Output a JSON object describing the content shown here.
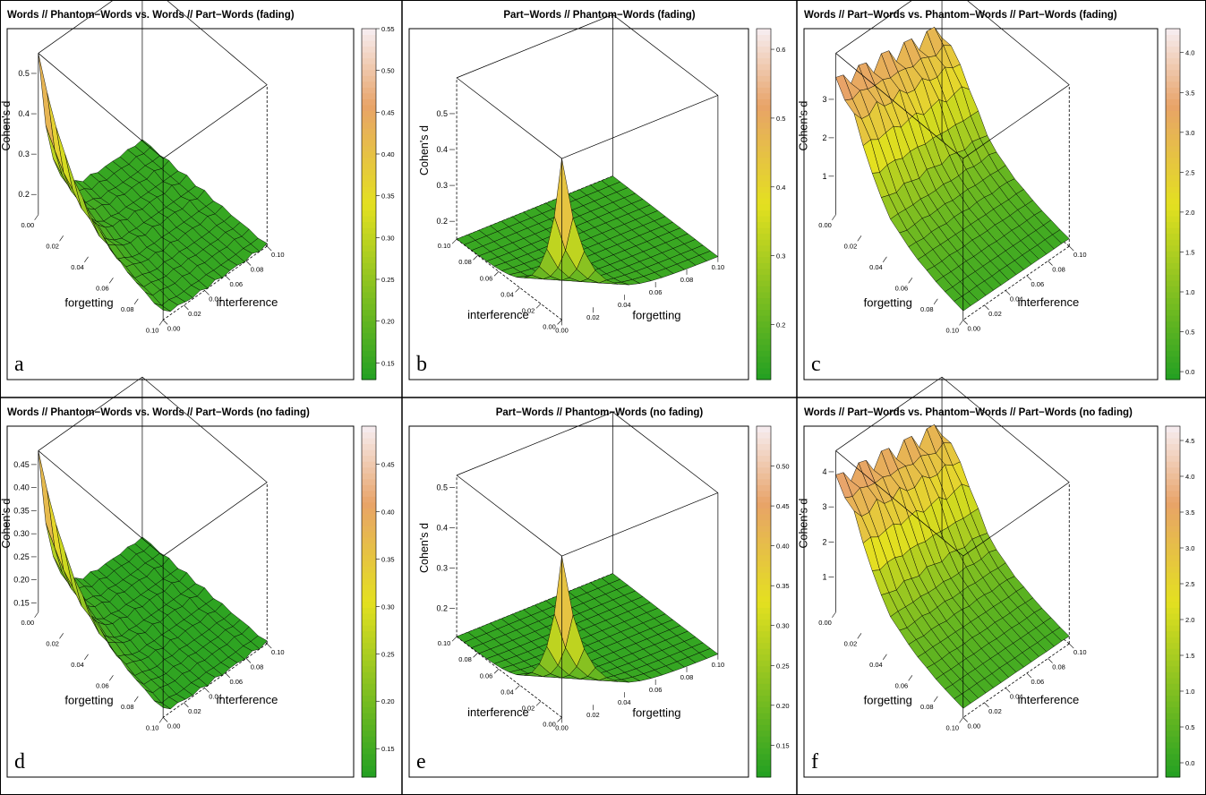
{
  "colors": {
    "low": "#22a022",
    "mid": "#e4e020",
    "high": "#f7eef2",
    "frame": "#000000",
    "mesh_line": "#000000"
  },
  "panels": [
    {
      "letter": "a",
      "title": "Words // Phantom−Words vs. Words // Part−Words (fading)",
      "view": "standard",
      "z_label": "Cohen's d",
      "z_ticks": [
        "0.2",
        "0.3",
        "0.4",
        "0.5"
      ],
      "x_label": "forgetting",
      "y_label": "interference",
      "x_ticks": [
        "0.00",
        "0.02",
        "0.04",
        "0.06",
        "0.08",
        "0.10"
      ],
      "y_ticks": [
        "0.00",
        "0.02",
        "0.04",
        "0.06",
        "0.08",
        "0.10"
      ],
      "colorbar_ticks": [
        "0.15",
        "0.20",
        "0.25",
        "0.30",
        "0.35",
        "0.40",
        "0.45",
        "0.50",
        "0.55"
      ],
      "surface": "edge_decay"
    },
    {
      "letter": "b",
      "title": "Part−Words // Phantom−Words (fading)",
      "view": "rotated",
      "z_label": "Cohen's d",
      "z_ticks": [
        "0.2",
        "0.3",
        "0.4",
        "0.5"
      ],
      "x_label": "forgetting",
      "y_label": "interference",
      "x_ticks": [
        "0.00",
        "0.02",
        "0.04",
        "0.06",
        "0.08",
        "0.10"
      ],
      "y_ticks": [
        "0.00",
        "0.02",
        "0.04",
        "0.06",
        "0.08",
        "0.10"
      ],
      "colorbar_ticks": [
        "0.2",
        "0.3",
        "0.4",
        "0.5",
        "0.6"
      ],
      "surface": "corner_peak"
    },
    {
      "letter": "c",
      "title": "Words // Part−Words vs. Phantom−Words // Part−Words (fading)",
      "view": "standard",
      "z_label": "Cohen's d",
      "z_ticks": [
        "1",
        "2",
        "3"
      ],
      "x_label": "forgetting",
      "y_label": "interference",
      "x_ticks": [
        "0.00",
        "0.02",
        "0.04",
        "0.06",
        "0.08",
        "0.10"
      ],
      "y_ticks": [
        "0.00",
        "0.02",
        "0.04",
        "0.06",
        "0.08",
        "0.10"
      ],
      "colorbar_ticks": [
        "0.0",
        "0.5",
        "1.0",
        "1.5",
        "2.0",
        "2.5",
        "3.0",
        "3.5",
        "4.0"
      ],
      "surface": "ridge_decay"
    },
    {
      "letter": "d",
      "title": "Words // Phantom−Words vs. Words // Part−Words (no fading)",
      "view": "standard",
      "z_label": "Cohen's d",
      "z_ticks": [
        "0.15",
        "0.20",
        "0.25",
        "0.30",
        "0.35",
        "0.40",
        "0.45"
      ],
      "x_label": "forgetting",
      "y_label": "interference",
      "x_ticks": [
        "0.00",
        "0.02",
        "0.04",
        "0.06",
        "0.08",
        "0.10"
      ],
      "y_ticks": [
        "0.00",
        "0.02",
        "0.04",
        "0.06",
        "0.08",
        "0.10"
      ],
      "colorbar_ticks": [
        "0.15",
        "0.20",
        "0.25",
        "0.30",
        "0.35",
        "0.40",
        "0.45"
      ],
      "surface": "edge_decay"
    },
    {
      "letter": "e",
      "title": "Part−Words // Phantom−Words (no fading)",
      "view": "rotated",
      "z_label": "Cohen's d",
      "z_ticks": [
        "0.2",
        "0.3",
        "0.4",
        "0.5"
      ],
      "x_label": "forgetting",
      "y_label": "interference",
      "x_ticks": [
        "0.00",
        "0.02",
        "0.04",
        "0.06",
        "0.08",
        "0.10"
      ],
      "y_ticks": [
        "0.00",
        "0.02",
        "0.04",
        "0.06",
        "0.08",
        "0.10"
      ],
      "colorbar_ticks": [
        "0.15",
        "0.20",
        "0.25",
        "0.30",
        "0.35",
        "0.40",
        "0.45",
        "0.50"
      ],
      "surface": "corner_peak"
    },
    {
      "letter": "f",
      "title": "Words // Part−Words vs. Phantom−Words // Part−Words (no fading)",
      "view": "standard",
      "z_label": "Cohen's d",
      "z_ticks": [
        "1",
        "2",
        "3",
        "4"
      ],
      "x_label": "forgetting",
      "y_label": "interference",
      "x_ticks": [
        "0.00",
        "0.02",
        "0.04",
        "0.06",
        "0.08",
        "0.10"
      ],
      "y_ticks": [
        "0.00",
        "0.02",
        "0.04",
        "0.06",
        "0.08",
        "0.10"
      ],
      "colorbar_ticks": [
        "0.0",
        "0.5",
        "1.0",
        "1.5",
        "2.0",
        "2.5",
        "3.0",
        "3.5",
        "4.0",
        "4.5"
      ],
      "surface": "ridge_decay"
    }
  ],
  "chart_data": [
    {
      "type": "surface",
      "panel": "a",
      "title": "Words // Phantom−Words vs. Words // Part−Words (fading)",
      "xlabel": "forgetting",
      "ylabel": "interference",
      "zlabel": "Cohen's d",
      "xlim": [
        0,
        0.1
      ],
      "ylim": [
        0,
        0.1
      ],
      "zlim": [
        0.15,
        0.55
      ],
      "x": [
        0.0,
        0.02,
        0.04,
        0.06,
        0.08,
        0.1
      ],
      "y": [
        0.0,
        0.02,
        0.04,
        0.06,
        0.08,
        0.1
      ],
      "z_max": 0.53,
      "z_min": 0.15,
      "z_at_y0": [
        0.53,
        0.38,
        0.26,
        0.2,
        0.17,
        0.15
      ],
      "colorbar_range": [
        0.13,
        0.55
      ]
    },
    {
      "type": "surface",
      "panel": "b",
      "title": "Part−Words // Phantom−Words (fading)",
      "xlabel": "forgetting",
      "ylabel": "interference",
      "zlabel": "Cohen's d",
      "xlim": [
        0,
        0.1
      ],
      "ylim": [
        0,
        0.1
      ],
      "zlim": [
        0.15,
        0.6
      ],
      "x": [
        0.0,
        0.02,
        0.04,
        0.06,
        0.08,
        0.1
      ],
      "y": [
        0.0,
        0.02,
        0.04,
        0.06,
        0.08,
        0.1
      ],
      "z_max": 0.6,
      "z_min": 0.15,
      "z_at_y0": [
        0.6,
        0.28,
        0.18,
        0.16,
        0.15,
        0.15
      ],
      "colorbar_range": [
        0.12,
        0.63
      ]
    },
    {
      "type": "surface",
      "panel": "c",
      "title": "Words // Part−Words vs. Phantom−Words // Part−Words (fading)",
      "xlabel": "forgetting",
      "ylabel": "interference",
      "zlabel": "Cohen's d",
      "xlim": [
        0,
        0.1
      ],
      "ylim": [
        0,
        0.1
      ],
      "zlim": [
        0,
        4.2
      ],
      "x": [
        0.0,
        0.02,
        0.04,
        0.06,
        0.08,
        0.1
      ],
      "y": [
        0.0,
        0.02,
        0.04,
        0.06,
        0.08,
        0.1
      ],
      "z_max": 4.1,
      "z_min": 0.0,
      "z_at_y0": [
        3.0,
        4.0,
        2.2,
        0.6,
        0.1,
        0.0
      ],
      "colorbar_range": [
        -0.1,
        4.3
      ]
    },
    {
      "type": "surface",
      "panel": "d",
      "title": "Words // Phantom−Words vs. Words // Part−Words (no fading)",
      "xlabel": "forgetting",
      "ylabel": "interference",
      "zlabel": "Cohen's d",
      "xlim": [
        0,
        0.1
      ],
      "ylim": [
        0,
        0.1
      ],
      "zlim": [
        0.13,
        0.48
      ],
      "x": [
        0.0,
        0.02,
        0.04,
        0.06,
        0.08,
        0.1
      ],
      "y": [
        0.0,
        0.02,
        0.04,
        0.06,
        0.08,
        0.1
      ],
      "z_max": 0.47,
      "z_min": 0.14,
      "z_at_y0": [
        0.47,
        0.34,
        0.24,
        0.18,
        0.15,
        0.14
      ],
      "colorbar_range": [
        0.12,
        0.49
      ]
    },
    {
      "type": "surface",
      "panel": "e",
      "title": "Part−Words // Phantom−Words (no fading)",
      "xlabel": "forgetting",
      "ylabel": "interference",
      "zlabel": "Cohen's d",
      "xlim": [
        0,
        0.1
      ],
      "ylim": [
        0,
        0.1
      ],
      "zlim": [
        0.13,
        0.53
      ],
      "x": [
        0.0,
        0.02,
        0.04,
        0.06,
        0.08,
        0.1
      ],
      "y": [
        0.0,
        0.02,
        0.04,
        0.06,
        0.08,
        0.1
      ],
      "z_max": 0.53,
      "z_min": 0.13,
      "z_at_y0": [
        0.53,
        0.25,
        0.16,
        0.14,
        0.13,
        0.13
      ],
      "colorbar_range": [
        0.11,
        0.55
      ]
    },
    {
      "type": "surface",
      "panel": "f",
      "title": "Words // Part−Words vs. Phantom−Words // Part−Words (no fading)",
      "xlabel": "forgetting",
      "ylabel": "interference",
      "zlabel": "Cohen's d",
      "xlim": [
        0,
        0.1
      ],
      "ylim": [
        0,
        0.1
      ],
      "zlim": [
        0,
        4.6
      ],
      "x": [
        0.0,
        0.02,
        0.04,
        0.06,
        0.08,
        0.1
      ],
      "y": [
        0.0,
        0.02,
        0.04,
        0.06,
        0.08,
        0.1
      ],
      "z_max": 4.5,
      "z_min": 0.0,
      "z_at_y0": [
        3.4,
        4.4,
        2.4,
        0.7,
        0.1,
        0.0
      ],
      "colorbar_range": [
        -0.2,
        4.7
      ]
    }
  ]
}
